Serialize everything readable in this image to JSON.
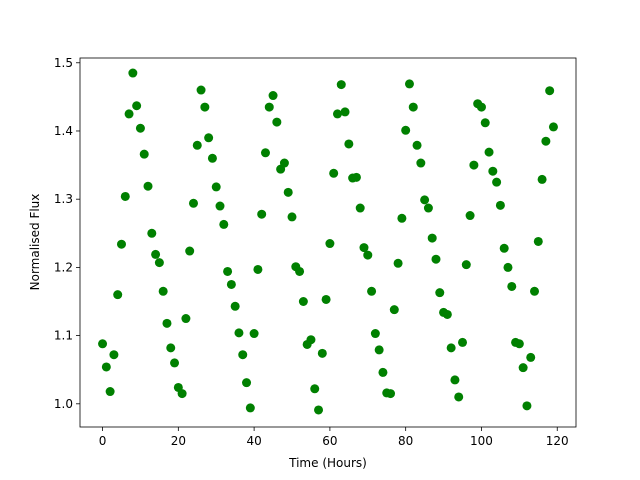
{
  "chart_data": {
    "type": "scatter",
    "xlabel": "Time (Hours)",
    "ylabel": "Normalised Flux",
    "color": "#008000",
    "x": [
      0,
      1,
      2,
      3,
      4,
      5,
      6,
      7,
      8,
      9,
      10,
      11,
      12,
      13,
      14,
      15,
      16,
      17,
      18,
      19,
      20,
      21,
      22,
      23,
      24,
      25,
      26,
      27,
      28,
      29,
      30,
      31,
      32,
      33,
      34,
      35,
      36,
      37,
      38,
      39,
      40,
      41,
      42,
      43,
      44,
      45,
      46,
      47,
      48,
      49,
      50,
      51,
      52,
      53,
      54,
      55,
      56,
      57,
      58,
      59,
      60,
      61,
      62,
      63,
      64,
      65,
      66,
      67,
      68,
      69,
      70,
      71,
      72,
      73,
      74,
      75,
      76,
      77,
      78,
      79,
      80,
      81,
      82,
      83,
      84,
      85,
      86,
      87,
      88,
      89,
      90,
      91,
      92,
      93,
      94,
      95,
      96,
      97,
      98,
      99,
      100,
      101,
      102,
      103,
      104,
      105,
      106,
      107,
      108,
      109,
      110,
      111,
      112,
      113,
      114,
      115,
      116,
      117,
      118,
      119
    ],
    "values": [
      1.088,
      1.054,
      1.018,
      1.072,
      1.16,
      1.234,
      1.304,
      1.425,
      1.485,
      1.437,
      1.404,
      1.366,
      1.319,
      1.25,
      1.219,
      1.207,
      1.165,
      1.118,
      1.082,
      1.06,
      1.024,
      1.015,
      1.125,
      1.224,
      1.294,
      1.379,
      1.46,
      1.435,
      1.39,
      1.36,
      1.318,
      1.29,
      1.263,
      1.194,
      1.175,
      1.143,
      1.104,
      1.072,
      1.031,
      0.994,
      1.103,
      1.197,
      1.278,
      1.368,
      1.435,
      1.452,
      1.413,
      1.344,
      1.353,
      1.31,
      1.274,
      1.201,
      1.194,
      1.15,
      1.087,
      1.094,
      1.022,
      0.991,
      1.074,
      1.153,
      1.235,
      1.338,
      1.425,
      1.468,
      1.428,
      1.381,
      1.331,
      1.332,
      1.287,
      1.229,
      1.218,
      1.165,
      1.103,
      1.079,
      1.046,
      1.016,
      1.015,
      1.138,
      1.206,
      1.272,
      1.401,
      1.469,
      1.435,
      1.379,
      1.353,
      1.299,
      1.287,
      1.243,
      1.212,
      1.163,
      1.134,
      1.131,
      1.082,
      1.035,
      1.01,
      1.09,
      1.204,
      1.276,
      1.35,
      1.44,
      1.435,
      1.412,
      1.369,
      1.341,
      1.325,
      1.291,
      1.228,
      1.2,
      1.172,
      1.09,
      1.088,
      1.053,
      0.997,
      1.068,
      1.165,
      1.238,
      1.329,
      1.385,
      1.459,
      1.406
    ],
    "xlim": [
      -5.95,
      124.95
    ],
    "xticks": [
      0,
      20,
      40,
      60,
      80,
      100,
      120
    ],
    "ylim": [
      0.966,
      1.507
    ],
    "yticks": [
      {
        "value": 1.0,
        "label": "1.0"
      },
      1.1,
      1.2,
      1.3,
      1.4,
      {
        "value": 1.5,
        "label": "1.5"
      }
    ]
  }
}
